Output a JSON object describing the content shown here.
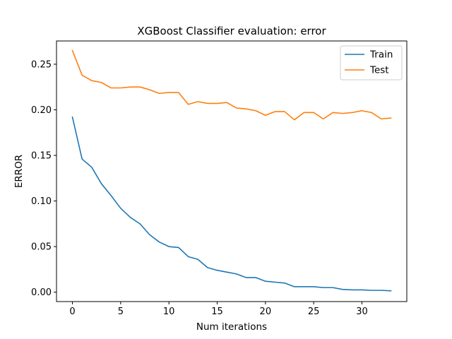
{
  "chart_data": {
    "type": "line",
    "title": "XGBoost Classifier evaluation: error",
    "xlabel": "Num iterations",
    "ylabel": "ERROR",
    "xlim": [
      -1.65,
      34.65
    ],
    "ylim": [
      -0.0103,
      0.2755
    ],
    "xticks": [
      0,
      5,
      10,
      15,
      20,
      25,
      30
    ],
    "xtick_labels": [
      "0",
      "5",
      "10",
      "15",
      "20",
      "25",
      "30"
    ],
    "yticks": [
      0.0,
      0.05,
      0.1,
      0.15,
      0.2,
      0.25
    ],
    "ytick_labels": [
      "0.00",
      "0.05",
      "0.10",
      "0.15",
      "0.20",
      "0.25"
    ],
    "grid": false,
    "legend_position": "top-right",
    "x": [
      0,
      1,
      2,
      3,
      4,
      5,
      6,
      7,
      8,
      9,
      10,
      11,
      12,
      13,
      14,
      15,
      16,
      17,
      18,
      19,
      20,
      21,
      22,
      23,
      24,
      25,
      26,
      27,
      28,
      29,
      30,
      31,
      32,
      33
    ],
    "series": [
      {
        "name": "Train",
        "color": "#1f77b4",
        "values": [
          0.192,
          0.146,
          0.137,
          0.119,
          0.106,
          0.092,
          0.082,
          0.075,
          0.063,
          0.055,
          0.05,
          0.049,
          0.039,
          0.036,
          0.027,
          0.024,
          0.022,
          0.02,
          0.016,
          0.016,
          0.012,
          0.011,
          0.01,
          0.006,
          0.006,
          0.006,
          0.005,
          0.005,
          0.003,
          0.0025,
          0.0025,
          0.002,
          0.002,
          0.0015
        ]
      },
      {
        "name": "Test",
        "color": "#ff7f0e",
        "values": [
          0.265,
          0.238,
          0.232,
          0.23,
          0.224,
          0.224,
          0.225,
          0.225,
          0.222,
          0.218,
          0.219,
          0.219,
          0.206,
          0.209,
          0.207,
          0.207,
          0.208,
          0.202,
          0.201,
          0.199,
          0.194,
          0.198,
          0.198,
          0.189,
          0.197,
          0.197,
          0.19,
          0.197,
          0.196,
          0.197,
          0.199,
          0.197,
          0.19,
          0.191
        ]
      }
    ]
  }
}
